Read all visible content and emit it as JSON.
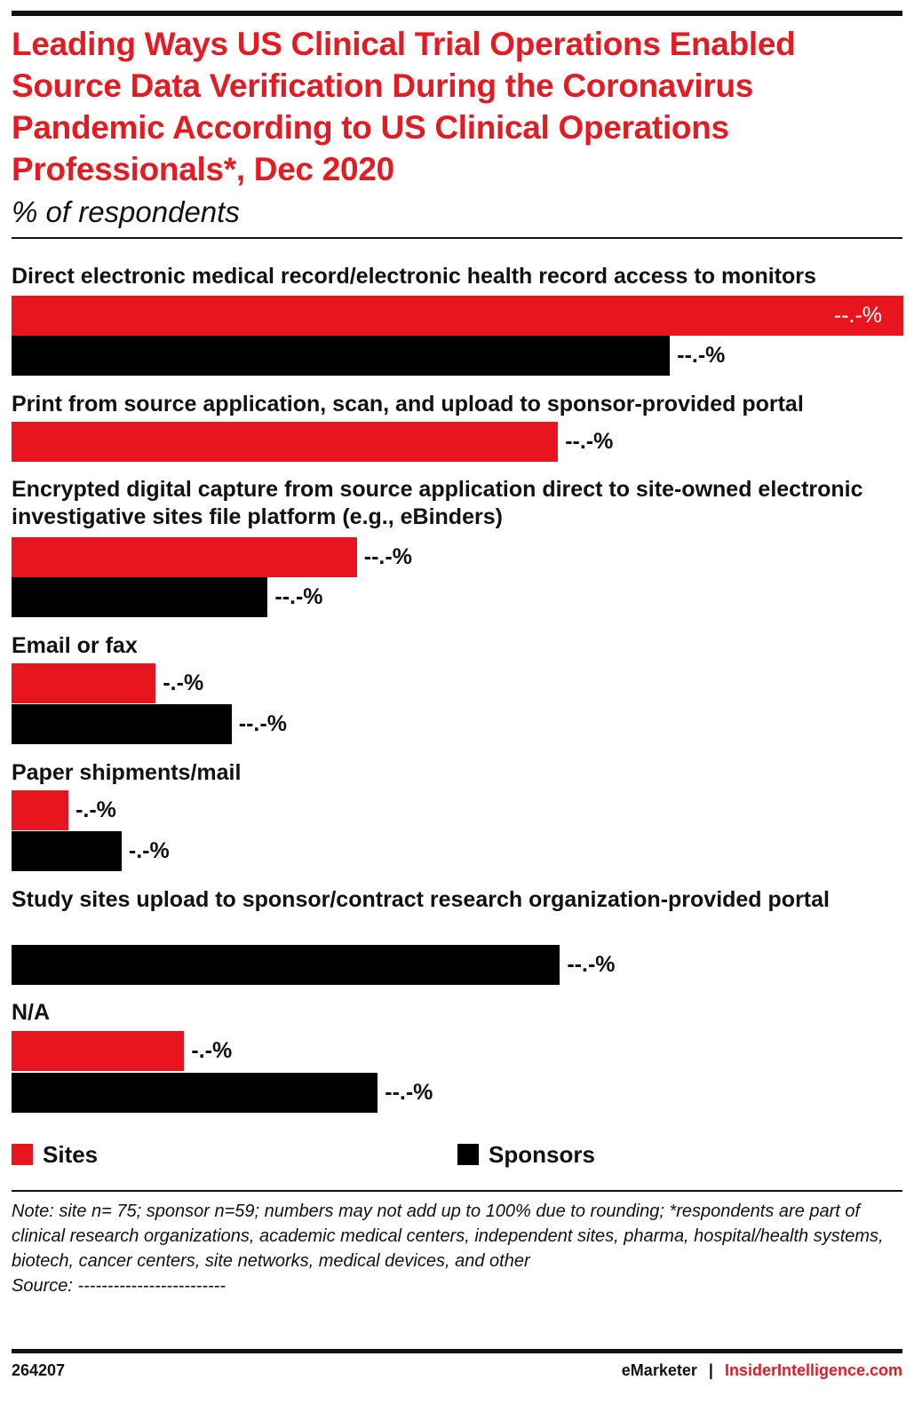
{
  "chart_data": {
    "type": "bar",
    "orientation": "horizontal",
    "title": "Leading Ways US Clinical Trial Operations Enabled Source Data Verification During the Coronavirus Pandemic According to US Clinical Operations Professionals*, Dec 2020",
    "subtitle": "% of respondents",
    "categories": [
      "Direct electronic medical record/electronic health record access to monitors",
      "Print from source application, scan, and upload to sponsor-provided portal",
      "Encrypted digital capture from source application direct to site-owned electronic investigative sites file platform (e.g., eBinders)",
      "Email or fax",
      "Paper shipments/mail",
      "Study sites upload to sponsor/contract research organization-provided portal",
      "N/A"
    ],
    "series": [
      {
        "name": "Sites",
        "color": "#e8151f",
        "values": [
          47.0,
          28.8,
          18.2,
          7.6,
          3.0,
          null,
          9.1
        ],
        "value_labels": [
          "--.-%",
          "--.-%",
          "--.-%",
          "-.-%",
          "-.-%",
          null,
          "-.-%"
        ]
      },
      {
        "name": "Sponsors",
        "color": "#000000",
        "values": [
          34.7,
          null,
          13.5,
          11.6,
          5.8,
          28.9,
          19.3
        ],
        "value_labels": [
          "--.-%",
          null,
          "--.-%",
          "--.-%",
          "-.-%",
          "--.-%",
          "--.-%"
        ]
      }
    ],
    "xlim": [
      0,
      47
    ],
    "note": "Note: site n= 75; sponsor n=59; numbers may not add up to 100% due to rounding; *respondents are part of clinical research organizations, academic medical centers, independent sites, pharma, hospital/health systems, biotech, cancer centers, site networks, medical devices, and other",
    "source": "Source: -------------------------",
    "chart_id": "264207",
    "brand": "eMarketer",
    "brand_separator": "|",
    "brand_site": "InsiderIntelligence.com"
  }
}
